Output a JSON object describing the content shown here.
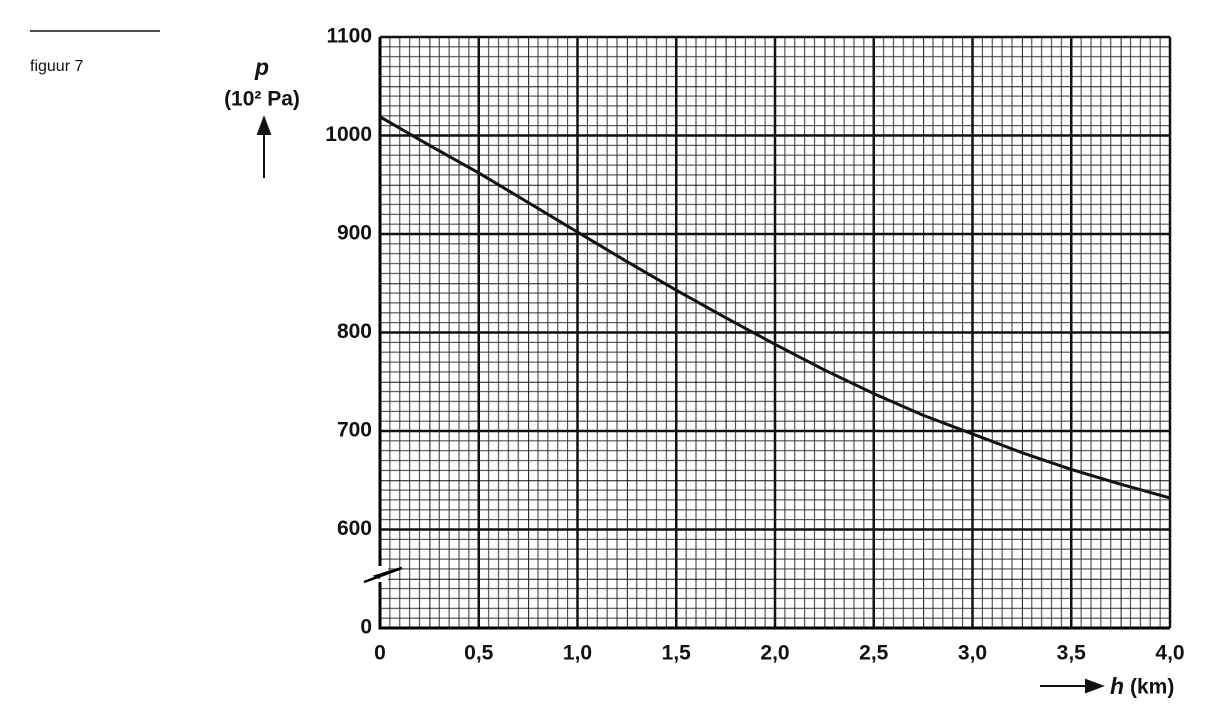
{
  "figure_label": "figuur 7",
  "chart_data": {
    "type": "line",
    "ylabel_symbol": "p",
    "ylabel_unit": "(10² Pa)",
    "xlabel_symbol": "h",
    "xlabel_unit": "(km)",
    "x": [
      0,
      0.25,
      0.5,
      0.75,
      1.0,
      1.25,
      1.5,
      1.75,
      2.0,
      2.25,
      2.5,
      2.75,
      3.0,
      3.25,
      3.5,
      3.75,
      4.0
    ],
    "values": [
      1019,
      990,
      962,
      932,
      902,
      872,
      843,
      815,
      788,
      762,
      738,
      716,
      697,
      678,
      661,
      646,
      632
    ],
    "color": "#111111",
    "xlim": [
      0,
      4.0
    ],
    "ylim": [
      0,
      1100
    ],
    "axis_break": [
      0,
      500
    ],
    "xticks": [
      0,
      {
        "value": 0.5,
        "label": "0,5"
      },
      {
        "value": 1.0,
        "label": "1,0"
      },
      {
        "value": 1.5,
        "label": "1,5"
      },
      {
        "value": 2.0,
        "label": "2,0"
      },
      {
        "value": 2.5,
        "label": "2,5"
      },
      {
        "value": 3.0,
        "label": "3,0"
      },
      {
        "value": 3.5,
        "label": "3,5"
      },
      {
        "value": 4.0,
        "label": "4,0"
      }
    ],
    "yticks": [
      0,
      600,
      700,
      800,
      900,
      1000,
      1100
    ],
    "grid": true
  }
}
